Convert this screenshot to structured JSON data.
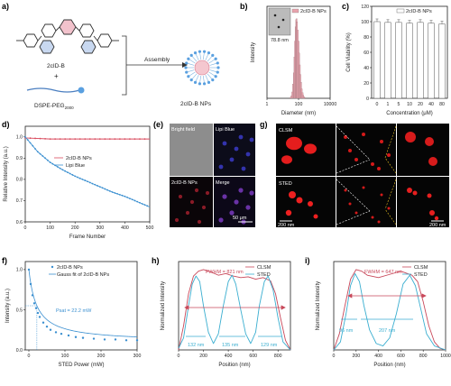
{
  "panels": {
    "a": {
      "label": "a)",
      "molecule_name": "2cID-B",
      "plus": "+",
      "lipid_name": "DSPE-PEG",
      "lipid_sub": "2000",
      "arrow_label": "Assembly",
      "product_name": "2cID-B NPs"
    },
    "e": {
      "label": "(e)",
      "quadrants": [
        "Bright field",
        "Lipi Blue",
        "2cID-B NPs",
        "Merge"
      ],
      "scale_bar": "50 μm"
    },
    "g": {
      "label": "g)",
      "rows": [
        "CLSM",
        "STED"
      ],
      "scale_left": "200 nm",
      "scale_right": "200 nm"
    }
  },
  "chart_data": [
    {
      "id": "b",
      "label": "b)",
      "type": "bar",
      "title": "",
      "xlabel": "Diameter (nm)",
      "ylabel": "Intensity",
      "xscale": "log",
      "xticks": [
        1,
        100,
        10000
      ],
      "xlim": [
        1,
        10000
      ],
      "legend": [
        "2cID-B NPs"
      ],
      "inset_text": "78.8 nm",
      "x": [
        30,
        35,
        40,
        45,
        50,
        55,
        60,
        65,
        70,
        75,
        80,
        90,
        100,
        110,
        120,
        130,
        145,
        160,
        180,
        200,
        220,
        245
      ],
      "values": [
        1,
        3,
        8,
        18,
        32,
        52,
        72,
        90,
        99,
        100,
        96,
        86,
        72,
        57,
        42,
        30,
        20,
        12,
        7,
        4,
        2,
        1
      ],
      "color": "#e8a3ad"
    },
    {
      "id": "c",
      "label": "c)",
      "type": "bar",
      "xlabel": "Concentration (μM)",
      "ylabel": "Cell Viability (%)",
      "ylim": [
        0,
        120
      ],
      "yticks": [
        0,
        20,
        40,
        60,
        80,
        100,
        120
      ],
      "legend": [
        "2cID-B NPs"
      ],
      "categories": [
        "0",
        "1",
        "5",
        "10",
        "20",
        "40",
        "80"
      ],
      "values": [
        100,
        99,
        99,
        98,
        99,
        98,
        97
      ]
    },
    {
      "id": "d",
      "label": "d)",
      "type": "line",
      "xlabel": "Frame Number",
      "ylabel": "Relative Intensity (a.u.)",
      "xlim": [
        0,
        500
      ],
      "ylim": [
        0.6,
        1.05
      ],
      "xticks": [
        0,
        100,
        200,
        300,
        400,
        500
      ],
      "yticks": [
        0.6,
        0.7,
        0.8,
        0.9,
        1.0
      ],
      "series": [
        {
          "name": "2cID-B NPs",
          "color": "#d94b5e",
          "x": [
            0,
            100,
            200,
            300,
            400,
            500
          ],
          "values": [
            0.995,
            0.99,
            0.99,
            0.99,
            0.99,
            0.99
          ]
        },
        {
          "name": "Lipi Blue",
          "color": "#3a8fd0",
          "x": [
            0,
            50,
            100,
            150,
            200,
            250,
            300,
            350,
            400,
            450,
            500
          ],
          "values": [
            1.0,
            0.93,
            0.88,
            0.845,
            0.815,
            0.79,
            0.765,
            0.74,
            0.72,
            0.695,
            0.67
          ]
        }
      ]
    },
    {
      "id": "f",
      "label": "f)",
      "type": "scatter",
      "xlabel": "STED Power (mW)",
      "ylabel": "Intensity (a.u.)",
      "xlim": [
        -10,
        300
      ],
      "ylim": [
        0,
        1.1
      ],
      "xticks": [
        0,
        100,
        200,
        300
      ],
      "yticks": [
        0.0,
        0.5,
        1.0
      ],
      "annotation": "Psat = 22.2 mW",
      "series": [
        {
          "name": "2cID-B NPs",
          "color": "#3a8fd0",
          "x": [
            0,
            5,
            10,
            15,
            20,
            25,
            30,
            40,
            50,
            60,
            75,
            90,
            110,
            130,
            150,
            180,
            210,
            240,
            270,
            300
          ],
          "values": [
            1.0,
            0.82,
            0.68,
            0.58,
            0.52,
            0.46,
            0.41,
            0.34,
            0.29,
            0.25,
            0.22,
            0.2,
            0.18,
            0.16,
            0.15,
            0.14,
            0.13,
            0.13,
            0.12,
            0.12
          ]
        },
        {
          "name": "Gauss fit of 2cID-B NPs",
          "color": "#3a8fd0",
          "style": "line",
          "psat": 22.2,
          "offset": 0.1
        }
      ]
    },
    {
      "id": "h",
      "label": "h)",
      "type": "line",
      "xlabel": "Position (nm)",
      "ylabel": "Normalized Intensity",
      "xlim": [
        0,
        900
      ],
      "ylim": [
        0,
        1.1
      ],
      "xticks": [
        0,
        200,
        400,
        600,
        800
      ],
      "annotations": [
        "FWHM = 821 nm",
        "132 nm",
        "135 nm",
        "129 nm"
      ],
      "series": [
        {
          "name": "CLSM",
          "color": "#c8485a",
          "x": [
            0,
            40,
            80,
            120,
            160,
            200,
            260,
            320,
            380,
            440,
            500,
            560,
            620,
            680,
            740,
            780,
            820,
            860,
            900
          ],
          "values": [
            0.0,
            0.3,
            0.7,
            0.92,
            0.98,
            1.0,
            0.97,
            0.93,
            0.95,
            0.92,
            0.9,
            0.91,
            0.88,
            0.9,
            0.86,
            0.7,
            0.4,
            0.12,
            0.0
          ]
        },
        {
          "name": "STED",
          "color": "#3aaed0",
          "x": [
            0,
            40,
            80,
            110,
            140,
            170,
            200,
            240,
            280,
            320,
            360,
            400,
            430,
            460,
            500,
            540,
            580,
            620,
            650,
            690,
            720,
            760,
            800,
            840,
            900
          ],
          "values": [
            0.02,
            0.15,
            0.55,
            0.82,
            0.92,
            0.85,
            0.55,
            0.22,
            0.08,
            0.2,
            0.55,
            0.85,
            0.93,
            0.82,
            0.5,
            0.2,
            0.08,
            0.22,
            0.55,
            0.85,
            0.92,
            0.75,
            0.4,
            0.1,
            0.0
          ]
        }
      ]
    },
    {
      "id": "i",
      "label": "i)",
      "type": "line",
      "xlabel": "Position (nm)",
      "ylabel": "Normalized Intensity",
      "xlim": [
        0,
        1000
      ],
      "ylim": [
        0,
        1.1
      ],
      "xticks": [
        0,
        200,
        400,
        600,
        800,
        1000
      ],
      "annotations": [
        "FWHM = 647 nm",
        "96 nm",
        "207 nm"
      ],
      "series": [
        {
          "name": "CLSM",
          "color": "#c8485a",
          "x": [
            0,
            50,
            100,
            150,
            200,
            250,
            300,
            400,
            500,
            600,
            700,
            750,
            800,
            850,
            900,
            950,
            1000
          ],
          "values": [
            0.0,
            0.2,
            0.55,
            0.88,
            1.0,
            0.98,
            0.93,
            0.9,
            0.94,
            0.98,
            0.93,
            0.85,
            0.6,
            0.3,
            0.1,
            0.02,
            0.0
          ]
        },
        {
          "name": "STED",
          "color": "#3aaed0",
          "x": [
            0,
            60,
            110,
            150,
            190,
            230,
            270,
            320,
            380,
            440,
            500,
            560,
            620,
            680,
            730,
            780,
            830,
            900,
            1000
          ],
          "values": [
            0.0,
            0.1,
            0.45,
            0.8,
            0.95,
            0.85,
            0.55,
            0.25,
            0.08,
            0.05,
            0.15,
            0.45,
            0.82,
            0.93,
            0.8,
            0.5,
            0.2,
            0.05,
            0.0
          ]
        }
      ]
    }
  ]
}
